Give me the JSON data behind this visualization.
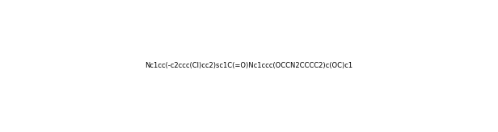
{
  "smiles": "Nc1cc(-c2ccc(Cl)cc2)sc1C(=O)Nc1ccc(OCCN2CCCC2)c(OC)c1",
  "title": "",
  "bg_color": "#ffffff",
  "fig_width": 6.16,
  "fig_height": 1.64,
  "dpi": 100
}
